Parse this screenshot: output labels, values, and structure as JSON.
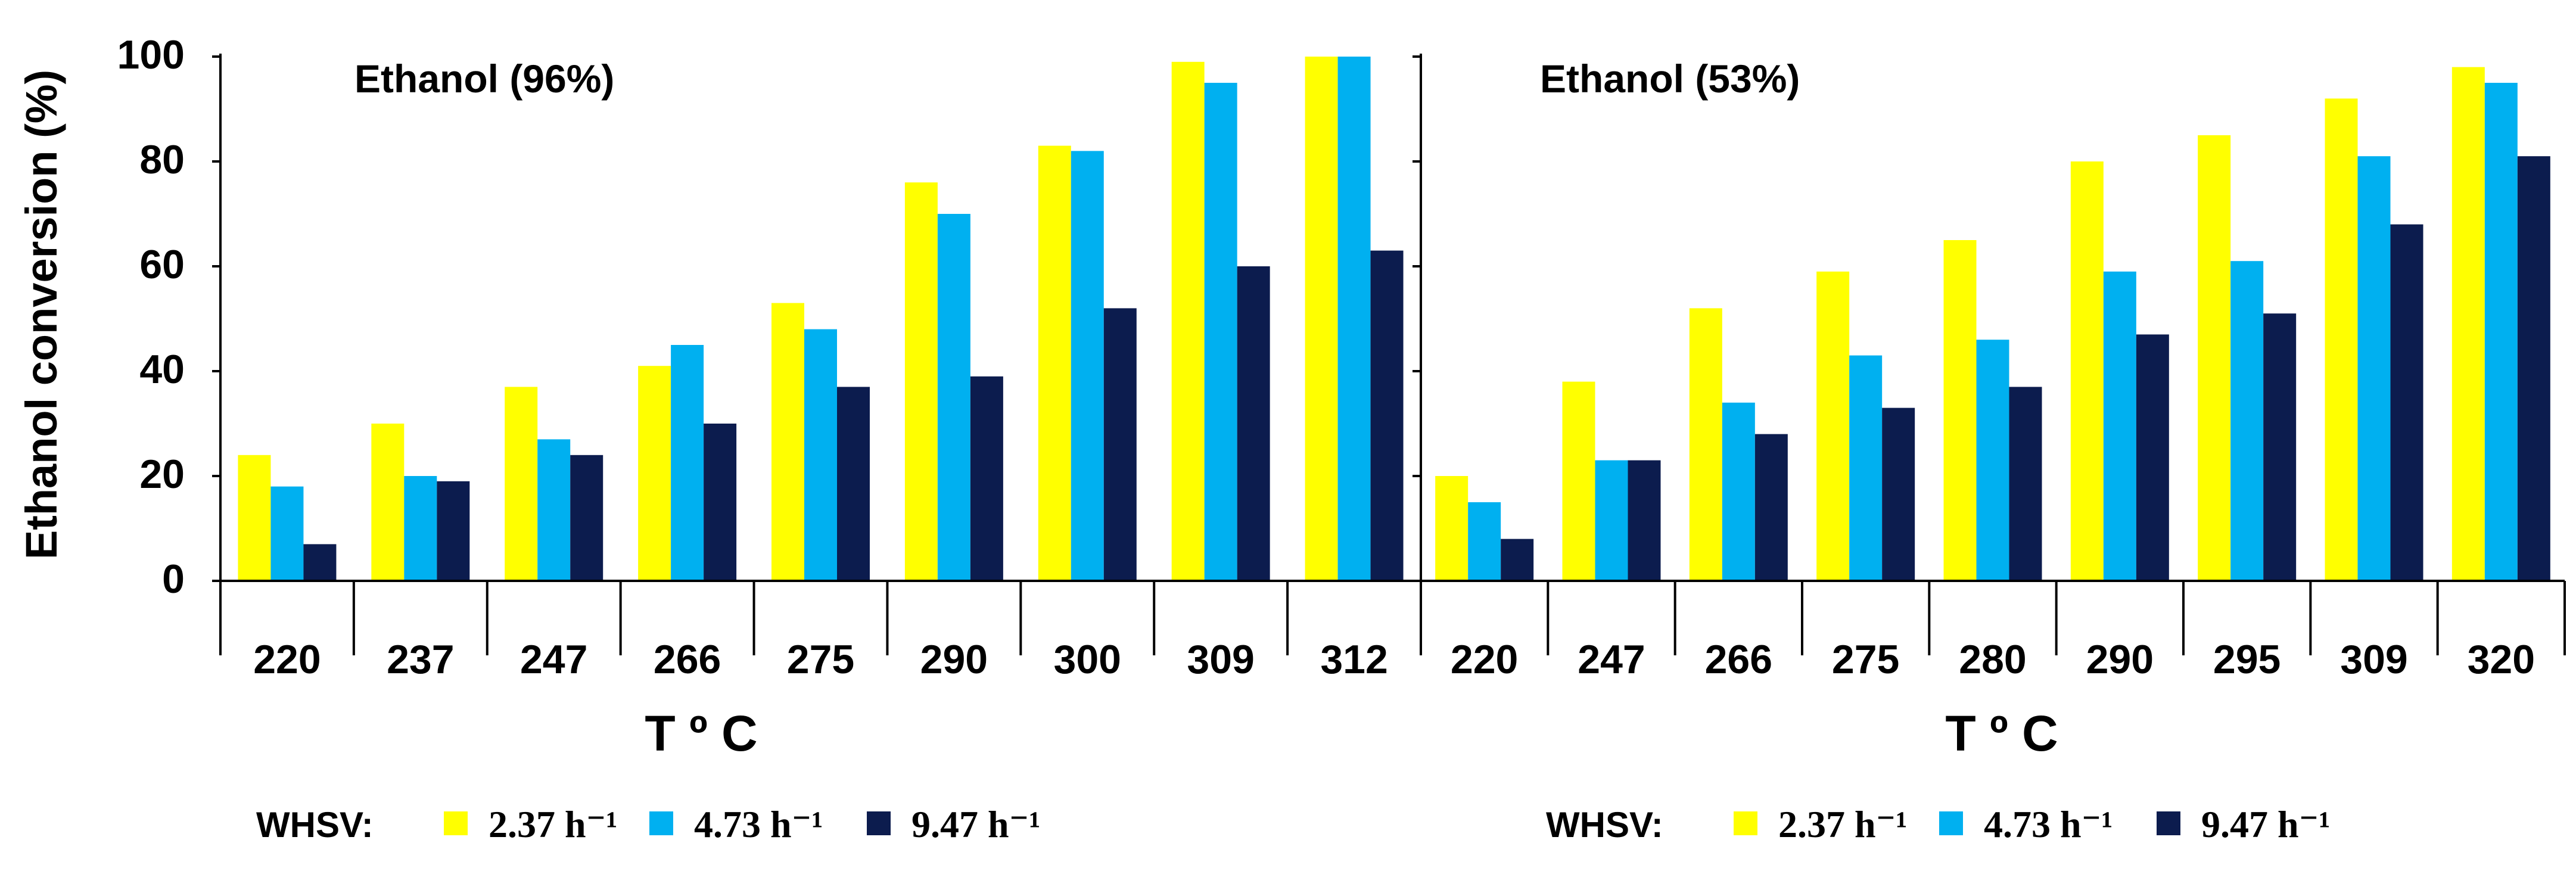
{
  "colors": {
    "series_1": "#ffff00",
    "series_2": "#00b0f0",
    "series_3": "#0c1c4e"
  },
  "chart_data": [
    {
      "type": "bar",
      "title": "Ethanol (96%)",
      "xlabel": "T º C",
      "ylabel": "Ethanol conversion  (%)",
      "ylim": [
        0,
        100
      ],
      "yticks": [
        "0",
        "20",
        "40",
        "60",
        "80",
        "100"
      ],
      "grid": false,
      "legend": "bottom",
      "legend_title": "WHSV:",
      "categories": [
        "220",
        "237",
        "247",
        "266",
        "275",
        "290",
        "300",
        "309",
        "312"
      ],
      "series": [
        {
          "name": "2.37 h⁻¹",
          "values": [
            24,
            30,
            37,
            41,
            53,
            76,
            83,
            99,
            100
          ]
        },
        {
          "name": "4.73 h⁻¹",
          "values": [
            18,
            20,
            27,
            45,
            48,
            70,
            82,
            95,
            100
          ]
        },
        {
          "name": "9.47 h⁻¹",
          "values": [
            7,
            19,
            24,
            30,
            37,
            39,
            52,
            60,
            63
          ]
        }
      ]
    },
    {
      "type": "bar",
      "title": "Ethanol (53%)",
      "xlabel": "T º C",
      "ylabel": "",
      "ylim": [
        0,
        100
      ],
      "grid": false,
      "legend": "bottom",
      "legend_title": "WHSV:",
      "categories": [
        "220",
        "247",
        "266",
        "275",
        "280",
        "290",
        "295",
        "309",
        "320"
      ],
      "series": [
        {
          "name": "2.37 h⁻¹",
          "values": [
            20,
            38,
            52,
            59,
            65,
            80,
            85,
            92,
            98
          ]
        },
        {
          "name": "4.73 h⁻¹",
          "values": [
            15,
            23,
            34,
            43,
            46,
            59,
            61,
            81,
            95
          ]
        },
        {
          "name": "9.47 h⁻¹",
          "values": [
            8,
            23,
            28,
            33,
            37,
            47,
            51,
            68,
            81
          ]
        }
      ]
    }
  ]
}
